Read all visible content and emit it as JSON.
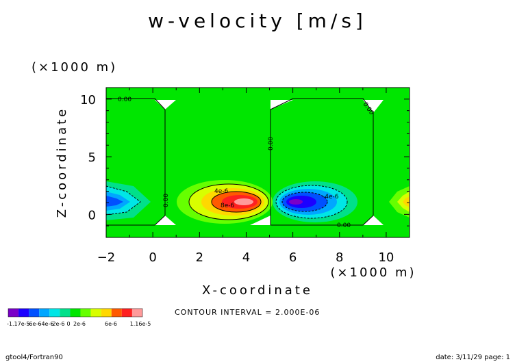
{
  "chart_data": {
    "type": "heatmap",
    "title": "w-velocity [m/s]",
    "xlabel": "X-coordinate",
    "ylabel": "Z-coordinate",
    "x_scale_note": "(×1000 m)",
    "y_scale_note": "(×1000 m)",
    "xlim": [
      -2,
      11
    ],
    "ylim": [
      -2,
      11
    ],
    "x_ticks": [
      -2,
      0,
      2,
      4,
      6,
      8,
      10
    ],
    "y_ticks": [
      0,
      5,
      10
    ],
    "contour_interval_text": "CONTOUR INTERVAL = 2.000E-06",
    "contour_labels": [
      "0.00",
      "0.00",
      "0.00",
      "0.00",
      "0.00",
      "0.00",
      "4e-6",
      "8e-6",
      "-4e-6"
    ],
    "colorbar": {
      "colors": [
        "#7a00c8",
        "#1c00ff",
        "#0050ff",
        "#00a6ff",
        "#00e6e6",
        "#00e08a",
        "#00e600",
        "#66ff00",
        "#d8ff00",
        "#ffd800",
        "#ff5a00",
        "#ff2020",
        "#ff9a9a"
      ],
      "tick_labels": [
        "-1.17e-5",
        "-6e-6",
        "-4e-6",
        "-2e-6",
        "0",
        "2e-6",
        "6e-6",
        "1.16e-5"
      ],
      "min": -1.17e-05,
      "max": 1.16e-05
    },
    "grid": false
  },
  "footer": {
    "left": "gtool4/Fortran90",
    "right": "date: 3/11/29 page: 1"
  }
}
